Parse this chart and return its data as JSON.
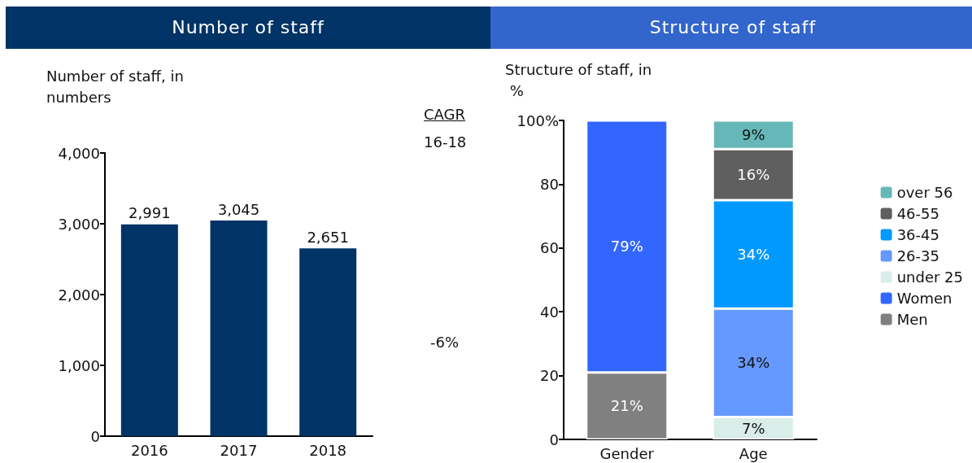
{
  "chart_data": [
    {
      "type": "bar",
      "title": "Number of staff",
      "ylabel": "Number of staff, in numbers",
      "categories": [
        "2016",
        "2017",
        "2018"
      ],
      "series": [
        {
          "color": "#003366",
          "values": [
            2991,
            3045,
            2651
          ],
          "value_labels": [
            "2,991",
            "3,045",
            "2,651"
          ]
        }
      ],
      "ylim": [
        0,
        4000
      ],
      "yticks": [
        0,
        {
          "value": 1000,
          "label": "1,000"
        },
        {
          "value": 2000,
          "label": "2,000"
        },
        {
          "value": 3000,
          "label": "3,000"
        },
        {
          "value": 4000,
          "label": "4,000"
        }
      ],
      "annotations": [
        "CAGR",
        "16-18",
        "-6%"
      ],
      "grid": false,
      "legend": false
    },
    {
      "type": "bar",
      "title": "Structure of staff",
      "ylabel": "Structure of staff, in %",
      "stacked": true,
      "categories": [
        "Gender",
        "Age"
      ],
      "series": [
        {
          "name": "Men",
          "color": "#808080",
          "values": [
            21,
            null
          ],
          "value_labels": [
            "21%",
            null
          ]
        },
        {
          "name": "Women",
          "color": "#3366ff",
          "values": [
            79,
            null
          ],
          "value_labels": [
            "79%",
            null
          ]
        },
        {
          "name": "under 25",
          "color": "#d9ede9",
          "values": [
            null,
            7
          ],
          "value_labels": [
            null,
            "7%"
          ]
        },
        {
          "name": "26-35",
          "color": "#6699ff",
          "values": [
            null,
            34
          ],
          "value_labels": [
            null,
            "34%"
          ]
        },
        {
          "name": "36-45",
          "color": "#0099ff",
          "values": [
            null,
            34
          ],
          "value_labels": [
            null,
            "34%"
          ]
        },
        {
          "name": "46-55",
          "color": "#5f5f5f",
          "values": [
            null,
            16
          ],
          "value_labels": [
            null,
            "16%"
          ]
        },
        {
          "name": "over 56",
          "color": "#66b8b8",
          "values": [
            null,
            9
          ],
          "value_labels": [
            null,
            "9%"
          ]
        }
      ],
      "ylim": [
        0,
        100
      ],
      "yticks": [
        0,
        20,
        40,
        60,
        80,
        {
          "value": 100,
          "label": "100%"
        }
      ],
      "grid": false,
      "legend": "right"
    }
  ]
}
